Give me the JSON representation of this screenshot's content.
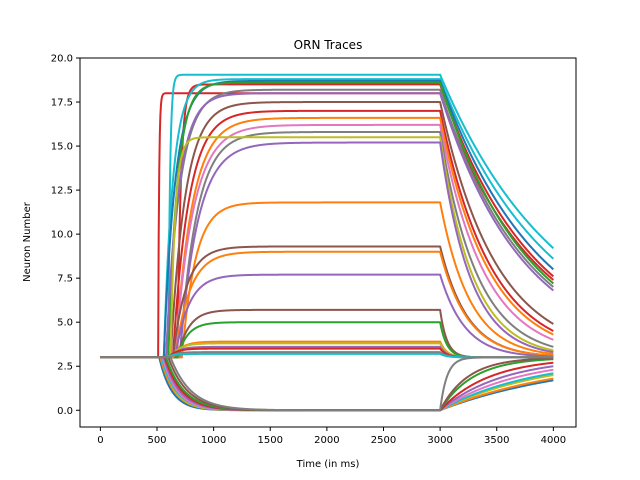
{
  "chart_data": {
    "type": "line",
    "title": "ORN Traces",
    "xlabel": "Time (in ms)",
    "ylabel": "Neuron Number",
    "xlim": [
      -180,
      4200
    ],
    "ylim": [
      -0.95,
      20.0
    ],
    "xticks": [
      0,
      500,
      1000,
      1500,
      2000,
      2500,
      3000,
      3500,
      4000
    ],
    "yticks": [
      0.0,
      2.5,
      5.0,
      7.5,
      10.0,
      12.5,
      15.0,
      17.5,
      20.0
    ],
    "xtick_labels": [
      "0",
      "500",
      "1000",
      "1500",
      "2000",
      "2500",
      "3000",
      "3500",
      "4000"
    ],
    "ytick_labels": [
      "0.0",
      "2.5",
      "5.0",
      "7.5",
      "10.0",
      "12.5",
      "15.0",
      "17.5",
      "20.0"
    ],
    "grid": false,
    "legend": "none",
    "baseline": 3.0,
    "stim_off_ms": 3000,
    "end_ms": 4000,
    "series": [
      {
        "onset": 510,
        "plateau": 18.0,
        "rise": 8,
        "decay_end": 7.4,
        "color": "#d62728"
      },
      {
        "onset": 600,
        "plateau": 19.05,
        "rise": 15,
        "decay_end": 9.2,
        "color": "#17becf"
      },
      {
        "onset": 680,
        "plateau": 18.5,
        "rise": 30,
        "decay_end": 7.6,
        "color": "#d62728"
      },
      {
        "onset": 560,
        "plateau": 18.8,
        "rise": 80,
        "decay_end": 8.6,
        "color": "#17becf"
      },
      {
        "onset": 560,
        "plateau": 18.7,
        "rise": 100,
        "decay_end": 8.0,
        "color": "#1f77b4"
      },
      {
        "onset": 600,
        "plateau": 18.6,
        "rise": 80,
        "decay_end": 7.2,
        "color": "#2ca02c"
      },
      {
        "onset": 580,
        "plateau": 18.2,
        "rise": 120,
        "decay_end": 7.0,
        "color": "#7f7f7f"
      },
      {
        "onset": 580,
        "plateau": 18.0,
        "rise": 110,
        "decay_end": 6.8,
        "color": "#9467bd"
      },
      {
        "onset": 620,
        "plateau": 17.5,
        "rise": 130,
        "decay_end": 4.9,
        "color": "#8c564b"
      },
      {
        "onset": 640,
        "plateau": 17.0,
        "rise": 140,
        "decay_end": 4.5,
        "color": "#d62728"
      },
      {
        "onset": 660,
        "plateau": 16.6,
        "rise": 150,
        "decay_end": 4.3,
        "color": "#ff7f0e"
      },
      {
        "onset": 660,
        "plateau": 16.2,
        "rise": 160,
        "decay_end": 4.0,
        "color": "#e377c2"
      },
      {
        "onset": 700,
        "plateau": 15.8,
        "rise": 150,
        "decay_end": 3.6,
        "color": "#7f7f7f"
      },
      {
        "onset": 620,
        "plateau": 15.5,
        "rise": 40,
        "decay_end": 3.4,
        "color": "#bcbd22"
      },
      {
        "onset": 700,
        "plateau": 15.2,
        "rise": 160,
        "decay_end": 3.3,
        "color": "#9467bd"
      },
      {
        "onset": 720,
        "plateau": 11.8,
        "rise": 120,
        "decay_end": 3.2,
        "color": "#ff7f0e"
      },
      {
        "onset": 640,
        "plateau": 9.3,
        "rise": 120,
        "decay_end": 3.1,
        "color": "#8c564b"
      },
      {
        "onset": 660,
        "plateau": 9.0,
        "rise": 130,
        "decay_end": 3.1,
        "color": "#ff7f0e"
      },
      {
        "onset": 660,
        "plateau": 7.7,
        "rise": 120,
        "decay_end": 3.05,
        "color": "#9467bd"
      },
      {
        "onset": 680,
        "plateau": 5.7,
        "rise": 100,
        "decay_end": 3.0,
        "color": "#8c564b"
      },
      {
        "onset": 680,
        "plateau": 5.0,
        "rise": 90,
        "decay_end": 3.0,
        "color": "#2ca02c"
      },
      {
        "onset": 640,
        "plateau": 3.9,
        "rise": 80,
        "decay_end": 3.0,
        "color": "#ff7f0e"
      },
      {
        "onset": 620,
        "plateau": 3.8,
        "rise": 80,
        "decay_end": 3.0,
        "color": "#bcbd22"
      },
      {
        "onset": 620,
        "plateau": 3.6,
        "rise": 70,
        "decay_end": 3.0,
        "color": "#9467bd"
      },
      {
        "onset": 600,
        "plateau": 3.5,
        "rise": 70,
        "decay_end": 3.0,
        "color": "#d62728"
      },
      {
        "onset": 600,
        "plateau": 3.3,
        "rise": 60,
        "decay_end": 3.0,
        "color": "#7f7f7f"
      },
      {
        "onset": 580,
        "plateau": 3.2,
        "rise": 60,
        "decay_end": 3.0,
        "color": "#17becf"
      },
      {
        "onset": 520,
        "plateau": 0.0,
        "rise": 110,
        "decay_end": 1.7,
        "color": "#1f77b4"
      },
      {
        "onset": 530,
        "plateau": 0.0,
        "rise": 120,
        "decay_end": 1.8,
        "color": "#ff7f0e"
      },
      {
        "onset": 540,
        "plateau": 0.0,
        "rise": 120,
        "decay_end": 2.0,
        "color": "#bcbd22"
      },
      {
        "onset": 540,
        "plateau": 0.0,
        "rise": 130,
        "decay_end": 2.1,
        "color": "#17becf"
      },
      {
        "onset": 550,
        "plateau": 0.0,
        "rise": 130,
        "decay_end": 2.3,
        "color": "#e377c2"
      },
      {
        "onset": 560,
        "plateau": 0.0,
        "rise": 140,
        "decay_end": 2.5,
        "color": "#9467bd"
      },
      {
        "onset": 570,
        "plateau": 0.0,
        "rise": 150,
        "decay_end": 2.7,
        "color": "#d62728"
      },
      {
        "onset": 580,
        "plateau": 0.0,
        "rise": 160,
        "decay_end": 2.9,
        "color": "#2ca02c"
      },
      {
        "onset": 600,
        "plateau": 0.0,
        "rise": 170,
        "decay_end": 2.95,
        "color": "#8c564b"
      },
      {
        "onset": 620,
        "plateau": 0.0,
        "rise": 180,
        "decay_end": 3.0,
        "color": "#7f7f7f"
      }
    ]
  }
}
